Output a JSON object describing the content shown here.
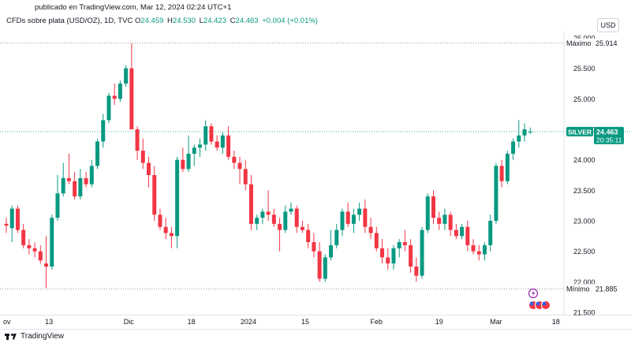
{
  "header": {
    "published": "publicado en TradingView.com, Mar 12, 2024 02:24 UTC+1",
    "symbol": "CFDs sobre plata (USD/OZ), 1D, TVC",
    "o_label": "O",
    "o": "24.459",
    "h_label": "H",
    "h": "24.530",
    "l_label": "L",
    "l": "24.423",
    "c_label": "C",
    "c": "24.463",
    "change": "+0.004 (+0.01%)"
  },
  "currency_button": "USD",
  "footer": {
    "brand": "TradingView"
  },
  "colors": {
    "up": "#089981",
    "down": "#f23645",
    "dotted": "#9598a1",
    "teal_line": "#4caf9d"
  },
  "chart_data": {
    "type": "candlestick",
    "y_axis_ticks": [
      "26.000",
      "25.500",
      "25.000",
      "24.500",
      "24.000",
      "23.500",
      "23.000",
      "22.500",
      "22.000",
      "21.500"
    ],
    "ylim": [
      21.5,
      26.0
    ],
    "x_axis_ticks": [
      "ov",
      "13",
      "Dic",
      "18",
      "2024",
      "15",
      "Feb",
      "19",
      "Mar",
      "18"
    ],
    "max_label": "Máximo",
    "max_value": "25.914",
    "min_label": "Mínimo",
    "min_value": "21.885",
    "last_label": "SILVER",
    "last_value": "24.463",
    "countdown": "20:35:11",
    "candles": [
      {
        "o": 22.95,
        "h": 23.05,
        "l": 22.8,
        "c": 22.92
      },
      {
        "o": 22.88,
        "h": 23.25,
        "l": 22.65,
        "c": 23.2
      },
      {
        "o": 23.2,
        "h": 23.25,
        "l": 22.8,
        "c": 22.85
      },
      {
        "o": 22.85,
        "h": 22.95,
        "l": 22.55,
        "c": 22.6
      },
      {
        "o": 22.6,
        "h": 22.7,
        "l": 22.45,
        "c": 22.55
      },
      {
        "o": 22.55,
        "h": 22.65,
        "l": 22.4,
        "c": 22.5
      },
      {
        "o": 22.5,
        "h": 22.6,
        "l": 22.3,
        "c": 22.35
      },
      {
        "o": 22.3,
        "h": 22.75,
        "l": 21.9,
        "c": 22.25
      },
      {
        "o": 22.25,
        "h": 23.1,
        "l": 22.2,
        "c": 23.05
      },
      {
        "o": 23.05,
        "h": 23.75,
        "l": 23.0,
        "c": 23.45
      },
      {
        "o": 23.45,
        "h": 23.95,
        "l": 23.4,
        "c": 23.7
      },
      {
        "o": 23.7,
        "h": 24.1,
        "l": 23.6,
        "c": 23.65
      },
      {
        "o": 23.65,
        "h": 23.8,
        "l": 23.35,
        "c": 23.4
      },
      {
        "o": 23.4,
        "h": 23.85,
        "l": 23.35,
        "c": 23.7
      },
      {
        "o": 23.7,
        "h": 23.8,
        "l": 23.55,
        "c": 23.6
      },
      {
        "o": 23.6,
        "h": 24.0,
        "l": 23.55,
        "c": 23.9
      },
      {
        "o": 23.9,
        "h": 24.35,
        "l": 23.85,
        "c": 24.3
      },
      {
        "o": 24.3,
        "h": 24.75,
        "l": 24.2,
        "c": 24.65
      },
      {
        "o": 24.65,
        "h": 25.1,
        "l": 24.6,
        "c": 25.05
      },
      {
        "o": 25.05,
        "h": 25.25,
        "l": 24.9,
        "c": 25.0
      },
      {
        "o": 25.0,
        "h": 25.3,
        "l": 24.95,
        "c": 25.25
      },
      {
        "o": 25.25,
        "h": 25.55,
        "l": 25.2,
        "c": 25.5
      },
      {
        "o": 25.5,
        "h": 25.91,
        "l": 24.5,
        "c": 24.5
      },
      {
        "o": 24.5,
        "h": 24.55,
        "l": 24.0,
        "c": 24.15
      },
      {
        "o": 24.15,
        "h": 24.35,
        "l": 23.85,
        "c": 23.95
      },
      {
        "o": 23.95,
        "h": 24.05,
        "l": 23.55,
        "c": 23.75
      },
      {
        "o": 23.75,
        "h": 23.9,
        "l": 23.0,
        "c": 23.1
      },
      {
        "o": 23.1,
        "h": 23.2,
        "l": 22.85,
        "c": 22.9
      },
      {
        "o": 22.9,
        "h": 23.05,
        "l": 22.7,
        "c": 22.8
      },
      {
        "o": 22.8,
        "h": 22.9,
        "l": 22.55,
        "c": 22.75
      },
      {
        "o": 22.75,
        "h": 24.05,
        "l": 22.55,
        "c": 24.0
      },
      {
        "o": 24.0,
        "h": 24.2,
        "l": 23.8,
        "c": 23.85
      },
      {
        "o": 23.85,
        "h": 24.4,
        "l": 23.8,
        "c": 24.1
      },
      {
        "o": 24.1,
        "h": 24.25,
        "l": 23.9,
        "c": 24.2
      },
      {
        "o": 24.2,
        "h": 24.35,
        "l": 24.05,
        "c": 24.25
      },
      {
        "o": 24.25,
        "h": 24.65,
        "l": 24.15,
        "c": 24.55
      },
      {
        "o": 24.55,
        "h": 24.6,
        "l": 24.25,
        "c": 24.3
      },
      {
        "o": 24.3,
        "h": 24.4,
        "l": 24.15,
        "c": 24.2
      },
      {
        "o": 24.2,
        "h": 24.45,
        "l": 24.1,
        "c": 24.4
      },
      {
        "o": 24.4,
        "h": 24.55,
        "l": 24.0,
        "c": 24.05
      },
      {
        "o": 24.05,
        "h": 24.15,
        "l": 23.85,
        "c": 23.95
      },
      {
        "o": 23.95,
        "h": 24.05,
        "l": 23.6,
        "c": 23.85
      },
      {
        "o": 23.85,
        "h": 24.0,
        "l": 23.5,
        "c": 23.6
      },
      {
        "o": 23.6,
        "h": 23.75,
        "l": 22.85,
        "c": 22.95
      },
      {
        "o": 22.95,
        "h": 23.1,
        "l": 22.85,
        "c": 23.05
      },
      {
        "o": 23.05,
        "h": 23.2,
        "l": 22.95,
        "c": 23.15
      },
      {
        "o": 23.15,
        "h": 23.5,
        "l": 23.0,
        "c": 23.1
      },
      {
        "o": 23.1,
        "h": 23.2,
        "l": 22.9,
        "c": 22.95
      },
      {
        "o": 22.95,
        "h": 23.05,
        "l": 22.5,
        "c": 22.85
      },
      {
        "o": 22.85,
        "h": 23.25,
        "l": 22.8,
        "c": 23.15
      },
      {
        "o": 23.15,
        "h": 23.3,
        "l": 23.1,
        "c": 23.2
      },
      {
        "o": 23.2,
        "h": 23.25,
        "l": 22.8,
        "c": 22.9
      },
      {
        "o": 22.9,
        "h": 23.0,
        "l": 22.8,
        "c": 22.85
      },
      {
        "o": 22.85,
        "h": 22.95,
        "l": 22.55,
        "c": 22.65
      },
      {
        "o": 22.65,
        "h": 22.8,
        "l": 22.4,
        "c": 22.5
      },
      {
        "o": 22.5,
        "h": 22.65,
        "l": 22.0,
        "c": 22.05
      },
      {
        "o": 22.05,
        "h": 22.45,
        "l": 22.0,
        "c": 22.4
      },
      {
        "o": 22.4,
        "h": 22.85,
        "l": 22.35,
        "c": 22.6
      },
      {
        "o": 22.6,
        "h": 22.95,
        "l": 22.55,
        "c": 22.85
      },
      {
        "o": 22.85,
        "h": 23.2,
        "l": 22.75,
        "c": 23.15
      },
      {
        "o": 23.15,
        "h": 23.3,
        "l": 22.9,
        "c": 22.95
      },
      {
        "o": 22.95,
        "h": 23.2,
        "l": 22.8,
        "c": 23.1
      },
      {
        "o": 23.1,
        "h": 23.3,
        "l": 23.0,
        "c": 23.2
      },
      {
        "o": 23.2,
        "h": 23.35,
        "l": 22.8,
        "c": 22.9
      },
      {
        "o": 22.9,
        "h": 23.05,
        "l": 22.7,
        "c": 22.8
      },
      {
        "o": 22.8,
        "h": 22.9,
        "l": 22.5,
        "c": 22.55
      },
      {
        "o": 22.55,
        "h": 22.7,
        "l": 22.3,
        "c": 22.4
      },
      {
        "o": 22.4,
        "h": 22.55,
        "l": 22.2,
        "c": 22.3
      },
      {
        "o": 22.3,
        "h": 22.6,
        "l": 22.2,
        "c": 22.55
      },
      {
        "o": 22.55,
        "h": 22.7,
        "l": 22.4,
        "c": 22.65
      },
      {
        "o": 22.65,
        "h": 22.85,
        "l": 22.5,
        "c": 22.6
      },
      {
        "o": 22.6,
        "h": 22.7,
        "l": 22.15,
        "c": 22.25
      },
      {
        "o": 22.25,
        "h": 22.4,
        "l": 22.0,
        "c": 22.1
      },
      {
        "o": 22.1,
        "h": 22.9,
        "l": 22.05,
        "c": 22.85
      },
      {
        "o": 22.85,
        "h": 23.45,
        "l": 22.8,
        "c": 23.4
      },
      {
        "o": 23.4,
        "h": 23.5,
        "l": 22.95,
        "c": 23.05
      },
      {
        "o": 23.05,
        "h": 23.15,
        "l": 22.85,
        "c": 22.95
      },
      {
        "o": 22.95,
        "h": 23.2,
        "l": 22.85,
        "c": 23.1
      },
      {
        "o": 23.1,
        "h": 23.15,
        "l": 22.75,
        "c": 22.85
      },
      {
        "o": 22.85,
        "h": 22.95,
        "l": 22.7,
        "c": 22.75
      },
      {
        "o": 22.75,
        "h": 22.95,
        "l": 22.7,
        "c": 22.9
      },
      {
        "o": 22.9,
        "h": 23.0,
        "l": 22.5,
        "c": 22.6
      },
      {
        "o": 22.6,
        "h": 22.7,
        "l": 22.45,
        "c": 22.5
      },
      {
        "o": 22.5,
        "h": 22.6,
        "l": 22.35,
        "c": 22.45
      },
      {
        "o": 22.45,
        "h": 22.65,
        "l": 22.35,
        "c": 22.6
      },
      {
        "o": 22.6,
        "h": 23.1,
        "l": 22.5,
        "c": 23.0
      },
      {
        "o": 23.0,
        "h": 23.95,
        "l": 22.95,
        "c": 23.9
      },
      {
        "o": 23.9,
        "h": 24.0,
        "l": 23.55,
        "c": 23.65
      },
      {
        "o": 23.65,
        "h": 24.15,
        "l": 23.6,
        "c": 24.1
      },
      {
        "o": 24.1,
        "h": 24.35,
        "l": 24.0,
        "c": 24.3
      },
      {
        "o": 24.3,
        "h": 24.65,
        "l": 24.2,
        "c": 24.4
      },
      {
        "o": 24.4,
        "h": 24.6,
        "l": 24.3,
        "c": 24.5
      },
      {
        "o": 24.459,
        "h": 24.53,
        "l": 24.423,
        "c": 24.463
      }
    ]
  }
}
